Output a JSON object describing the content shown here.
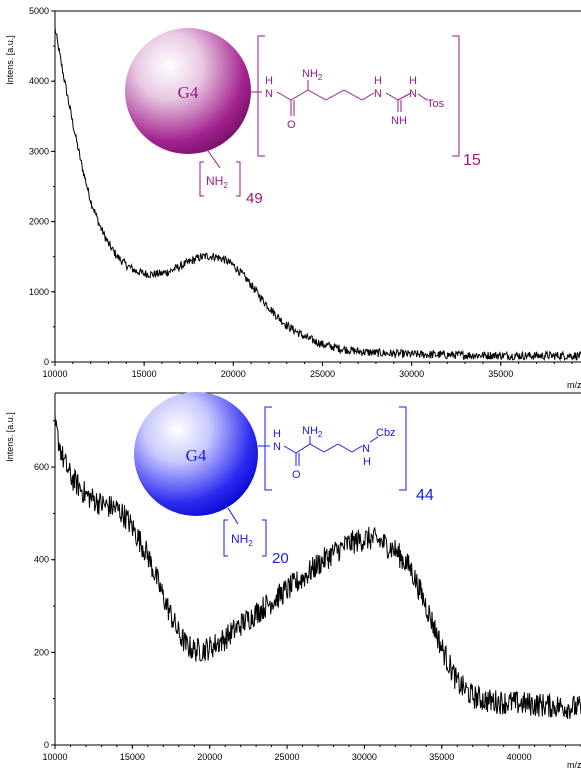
{
  "chart_data": [
    {
      "type": "line",
      "title": "",
      "xlabel": "m/z",
      "ylabel": "Intens. [a.u.]",
      "xlim": [
        10000,
        39500
      ],
      "ylim": [
        0,
        5000
      ],
      "x_ticks": [
        10000,
        15000,
        20000,
        25000,
        30000,
        35000
      ],
      "y_ticks": [
        0,
        1000,
        2000,
        3000,
        4000,
        5000
      ],
      "line_color": "#000000",
      "grid": false,
      "series": [
        {
          "x": [
            10000,
            10500,
            11000,
            11500,
            12000,
            12500,
            13000,
            13500,
            14000,
            14500,
            15000,
            15500,
            16000,
            16500,
            17000,
            17500,
            18000,
            18500,
            19000,
            19500,
            20000,
            20500,
            21000,
            21500,
            22000,
            22500,
            23000,
            24000,
            25000,
            26000,
            27000,
            28000,
            29000,
            30000,
            31000,
            32000,
            34000,
            36000,
            38000,
            39500
          ],
          "values": [
            4750,
            4050,
            3400,
            2800,
            2300,
            1950,
            1680,
            1500,
            1380,
            1300,
            1260,
            1250,
            1260,
            1300,
            1360,
            1420,
            1480,
            1510,
            1500,
            1460,
            1380,
            1250,
            1100,
            930,
            780,
            640,
            520,
            360,
            250,
            190,
            150,
            130,
            120,
            110,
            105,
            100,
            95,
            90,
            90,
            90
          ]
        }
      ],
      "structure": {
        "color": "#9a1a86",
        "core_label": "G4",
        "amine_label": "NH2",
        "amine_count": "49",
        "repeat_count": "15",
        "group_labels": [
          "H",
          "N",
          "NH2",
          "O",
          "H",
          "N",
          "H",
          "N",
          "Tos",
          "NH"
        ]
      }
    },
    {
      "type": "line",
      "title": "",
      "xlabel": "m/z",
      "ylabel": "Intens. [a.u.]",
      "xlim": [
        10000,
        44000
      ],
      "ylim": [
        0,
        760
      ],
      "x_ticks": [
        10000,
        15000,
        20000,
        25000,
        30000,
        35000,
        40000
      ],
      "y_ticks": [
        0,
        200,
        400,
        600
      ],
      "line_color": "#000000",
      "grid": false,
      "series": [
        {
          "x": [
            10000,
            10500,
            11000,
            12000,
            13000,
            13500,
            14000,
            14500,
            15000,
            16000,
            17000,
            18000,
            18500,
            19000,
            19500,
            20000,
            21000,
            22000,
            23000,
            24000,
            25000,
            26000,
            27000,
            28000,
            29000,
            30000,
            30500,
            31000,
            32000,
            33000,
            34000,
            35000,
            36000,
            37000,
            38000,
            40000,
            42000,
            44000
          ],
          "values": [
            690,
            620,
            580,
            540,
            520,
            515,
            510,
            495,
            470,
            410,
            320,
            240,
            215,
            205,
            205,
            210,
            230,
            260,
            285,
            310,
            335,
            360,
            390,
            415,
            435,
            445,
            445,
            440,
            420,
            380,
            300,
            210,
            135,
            105,
            95,
            90,
            85,
            80
          ]
        }
      ],
      "structure": {
        "color": "#1a1ae6",
        "core_label": "G4",
        "amine_label": "NH2",
        "amine_count": "20",
        "repeat_count": "44",
        "group_labels": [
          "H",
          "N",
          "NH2",
          "O",
          "N",
          "H",
          "Cbz"
        ]
      }
    }
  ]
}
